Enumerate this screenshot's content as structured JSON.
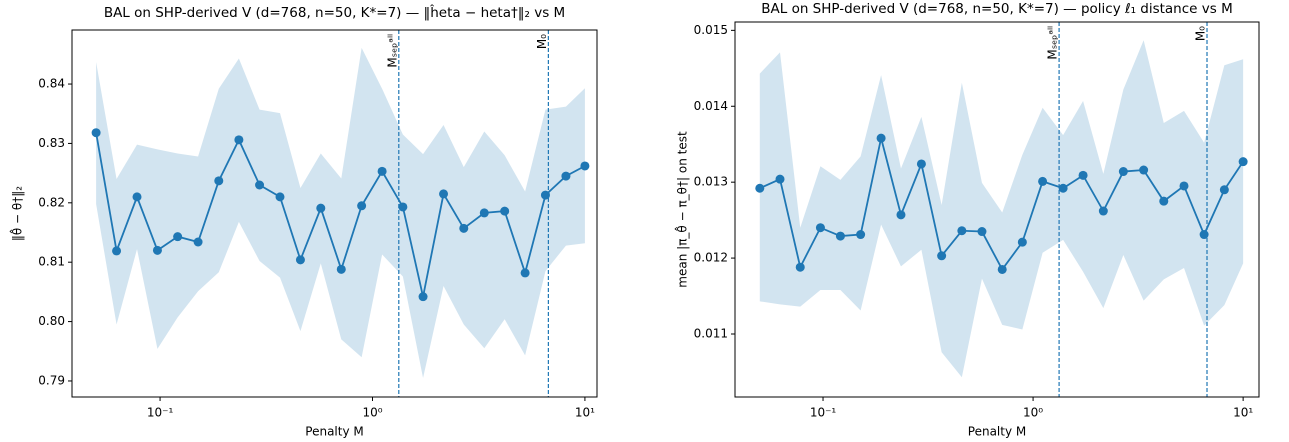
{
  "chart_data": [
    {
      "type": "line",
      "title": "BAL on SHP-derived V (d=768, n=50, K*=7) — ‖ĥeta − heta†‖₂ vs M",
      "x_label": "Penalty M",
      "y_label": "‖θ̂ − θ†‖₂",
      "xscale": "log",
      "xlim": [
        0.0385,
        11.4
      ],
      "xticks": [
        {
          "value": 0.1,
          "label": "10⁻¹"
        },
        {
          "value": 1,
          "label": "10⁰"
        },
        {
          "value": 10,
          "label": "10¹"
        }
      ],
      "ylim": [
        0.7873,
        0.8491
      ],
      "yticks": [
        0.79,
        {
          "value": 0.8,
          "label": "0.80"
        },
        0.81,
        0.82,
        0.83,
        0.84
      ],
      "x": [
        0.05,
        0.0624,
        0.0779,
        0.0972,
        0.121,
        0.151,
        0.189,
        0.235,
        0.294,
        0.367,
        0.458,
        0.571,
        0.713,
        0.889,
        1.11,
        1.39,
        1.73,
        2.16,
        2.69,
        3.36,
        4.19,
        5.23,
        6.52,
        8.14,
        10
      ],
      "series": [
        {
          "color": "#1f77b4",
          "values": [
            0.8318,
            0.8119,
            0.821,
            0.812,
            0.8143,
            0.8134,
            0.8237,
            0.8306,
            0.823,
            0.821,
            0.8104,
            0.8191,
            0.8088,
            0.8195,
            0.8253,
            0.8193,
            0.8042,
            0.8215,
            0.8157,
            0.8183,
            0.8186,
            0.8082,
            0.8213,
            0.8245,
            0.8262
          ],
          "upper": [
            0.8437,
            0.824,
            0.8298,
            0.829,
            0.8283,
            0.8278,
            0.8392,
            0.8443,
            0.8357,
            0.8351,
            0.8225,
            0.8283,
            0.8241,
            0.8461,
            0.8392,
            0.8315,
            0.8282,
            0.8331,
            0.826,
            0.832,
            0.828,
            0.8219,
            0.8357,
            0.8362,
            0.8393
          ],
          "lower": [
            0.8198,
            0.7995,
            0.8122,
            0.7954,
            0.8007,
            0.8051,
            0.8083,
            0.8168,
            0.8102,
            0.8074,
            0.7984,
            0.8098,
            0.797,
            0.794,
            0.8113,
            0.8076,
            0.7905,
            0.806,
            0.7995,
            0.7955,
            0.8004,
            0.7943,
            0.8085,
            0.8128,
            0.8132
          ]
        }
      ],
      "vlines": [
        {
          "x": 1.33,
          "label": "Mₛₑₚᵃˡˡ"
        },
        {
          "x": 6.73,
          "label": "M₀"
        }
      ]
    },
    {
      "type": "line",
      "title": "BAL on SHP-derived V (d=768, n=50, K*=7) — policy ℓ₁ distance vs M",
      "x_label": "Penalty M",
      "y_label": "mean |π_θ̂ − π_θ†| on test",
      "xscale": "log",
      "xlim": [
        0.0381,
        11.9
      ],
      "xticks": [
        {
          "value": 0.1,
          "label": "10⁻¹"
        },
        {
          "value": 1,
          "label": "10⁰"
        },
        {
          "value": 10,
          "label": "10¹"
        }
      ],
      "ylim": [
        0.01017,
        0.01511
      ],
      "yticks": [
        0.011,
        0.012,
        0.013,
        0.014,
        0.015
      ],
      "x": [
        0.05,
        0.0624,
        0.0779,
        0.0972,
        0.121,
        0.151,
        0.189,
        0.235,
        0.294,
        0.367,
        0.458,
        0.571,
        0.713,
        0.889,
        1.11,
        1.39,
        1.73,
        2.16,
        2.69,
        3.36,
        4.19,
        5.23,
        6.52,
        8.14,
        10
      ],
      "series": [
        {
          "color": "#1f77b4",
          "values": [
            0.01292,
            0.01304,
            0.01188,
            0.0124,
            0.01229,
            0.01231,
            0.01358,
            0.01257,
            0.01324,
            0.01203,
            0.01236,
            0.01235,
            0.01185,
            0.01221,
            0.01301,
            0.01292,
            0.01309,
            0.01262,
            0.01314,
            0.01316,
            0.01275,
            0.01295,
            0.01231,
            0.0129,
            0.01327
          ],
          "upper": [
            0.01443,
            0.01471,
            0.0124,
            0.01321,
            0.01303,
            0.01334,
            0.01441,
            0.01318,
            0.01386,
            0.0127,
            0.01431,
            0.01299,
            0.0126,
            0.01336,
            0.01398,
            0.01362,
            0.01407,
            0.01311,
            0.01422,
            0.01487,
            0.01378,
            0.01394,
            0.01352,
            0.01454,
            0.01462
          ],
          "lower": [
            0.01143,
            0.01139,
            0.01136,
            0.01158,
            0.01158,
            0.01131,
            0.01244,
            0.01189,
            0.01211,
            0.01076,
            0.01043,
            0.01173,
            0.01112,
            0.01106,
            0.01207,
            0.01224,
            0.01182,
            0.01134,
            0.01204,
            0.01144,
            0.01172,
            0.01187,
            0.01111,
            0.01138,
            0.01193
          ]
        }
      ],
      "vlines": [
        {
          "x": 1.33,
          "label": "Mₛₑₚᵃˡˡ"
        },
        {
          "x": 6.73,
          "label": "M₀"
        }
      ]
    }
  ]
}
